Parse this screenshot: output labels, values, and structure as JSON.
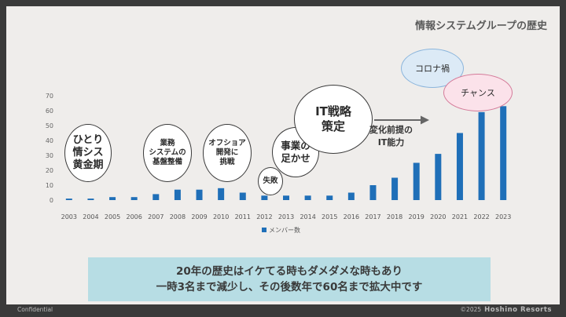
{
  "title": "情報システムグループの歴史",
  "chart_data": {
    "type": "bar",
    "title": "",
    "xlabel": "",
    "ylabel": "",
    "ylim": [
      0,
      70
    ],
    "yticks": [
      0,
      10,
      20,
      30,
      40,
      50,
      60,
      70
    ],
    "categories": [
      "2003",
      "2004",
      "2005",
      "2006",
      "2007",
      "2008",
      "2009",
      "2010",
      "2011",
      "2012",
      "2013",
      "2014",
      "2015",
      "2016",
      "2017",
      "2018",
      "2019",
      "2020",
      "2021",
      "2022",
      "2023"
    ],
    "series": [
      {
        "name": "メンバー数",
        "color": "#1f6fb8",
        "values": [
          1,
          1,
          2,
          2,
          4,
          7,
          7,
          8,
          5,
          3,
          3,
          3,
          3,
          5,
          10,
          15,
          25,
          31,
          45,
          59,
          63
        ]
      }
    ],
    "legend_position": "bottom",
    "grid": false
  },
  "annotations": {
    "golden_age": [
      "ひとり",
      "情シス",
      "黄金期"
    ],
    "infra": [
      "業務",
      "システムの",
      "基盤整備"
    ],
    "offshore": [
      "オフショア",
      "開発に",
      "挑戦"
    ],
    "failure": "失敗",
    "foundation": [
      "事業の",
      "足かせ"
    ],
    "it_strategy": [
      "IT戦略",
      "策定"
    ],
    "arrow_label": [
      "変化前提の",
      "IT能力"
    ],
    "corona": "コロナ禍",
    "chance": "チャンス"
  },
  "summary": [
    "20年の歴史はイケてる時もダメダメな時もあり",
    "一時3名まで減少し、その後数年で60名まで拡大中です"
  ],
  "footer": {
    "left": "Confidential",
    "copyright": "©2025",
    "brand": "Hoshino Resorts"
  }
}
